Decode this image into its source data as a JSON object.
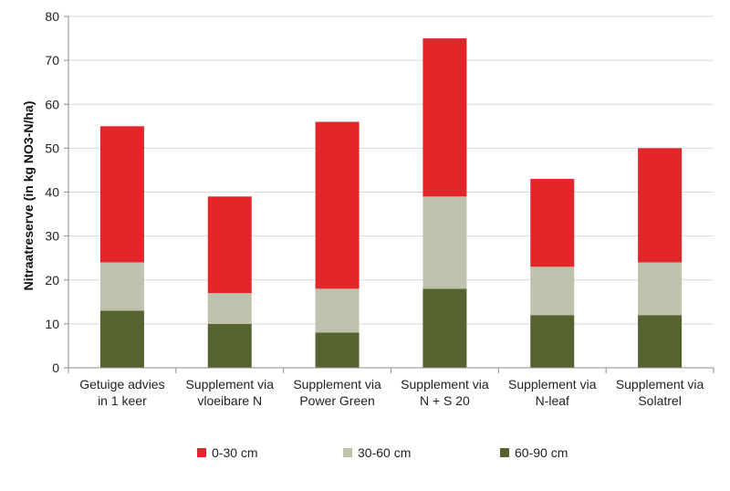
{
  "chart_data": {
    "type": "bar",
    "stacked": true,
    "ylabel": "Nitraatreserve (in kg NO3-N/ha)",
    "ylim": [
      0,
      80
    ],
    "yticks": [
      0,
      10,
      20,
      30,
      40,
      50,
      60,
      70,
      80
    ],
    "grid": "horizontal",
    "legend_position": "bottom",
    "categories": [
      [
        "Getuige advies",
        "in 1 keer"
      ],
      [
        "Supplement via",
        "vloeibare N"
      ],
      [
        "Supplement via",
        "Power Green"
      ],
      [
        "Supplement via",
        "N + S 20"
      ],
      [
        "Supplement via",
        "N-leaf"
      ],
      [
        "Supplement via",
        "Solatrel"
      ]
    ],
    "series": [
      {
        "name": "60-90 cm",
        "color": "#556331",
        "values": [
          13,
          10,
          8,
          18,
          12,
          12
        ]
      },
      {
        "name": "30-60 cm",
        "color": "#bfc3ae",
        "values": [
          11,
          7,
          10,
          21,
          11,
          12
        ]
      },
      {
        "name": "0-30 cm",
        "color": "#e3262a",
        "values": [
          31,
          22,
          38,
          36,
          20,
          26
        ]
      }
    ],
    "legend_order": [
      "0-30 cm",
      "30-60 cm",
      "60-90 cm"
    ]
  }
}
